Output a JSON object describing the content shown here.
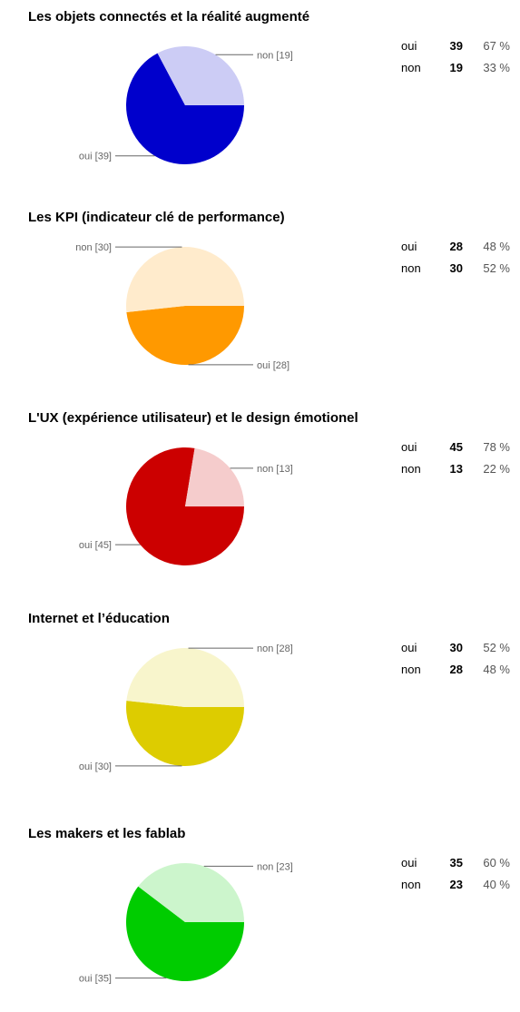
{
  "chart_data": [
    {
      "type": "pie",
      "title": "Les objets connectés et la réalité augmenté",
      "slices": [
        {
          "label": "oui",
          "value": 39,
          "percent": "67 %",
          "slice_label": "oui [39]",
          "color": "#0000cc"
        },
        {
          "label": "non",
          "value": 19,
          "percent": "33 %",
          "slice_label": "non [19]",
          "color": "#ccccf5"
        }
      ]
    },
    {
      "type": "pie",
      "title": "Les KPI (indicateur clé de performance)",
      "slices": [
        {
          "label": "oui",
          "value": 28,
          "percent": "48 %",
          "slice_label": "oui [28]",
          "color": "#ff9900"
        },
        {
          "label": "non",
          "value": 30,
          "percent": "52 %",
          "slice_label": "non [30]",
          "color": "#ffebcc"
        }
      ]
    },
    {
      "type": "pie",
      "title": "L'UX (expérience utilisateur) et le design émotionel",
      "slices": [
        {
          "label": "oui",
          "value": 45,
          "percent": "78 %",
          "slice_label": "oui [45]",
          "color": "#cc0000"
        },
        {
          "label": "non",
          "value": 13,
          "percent": "22 %",
          "slice_label": "non [13]",
          "color": "#f5cccc"
        }
      ]
    },
    {
      "type": "pie",
      "title": "Internet et l’éducation",
      "slices": [
        {
          "label": "oui",
          "value": 30,
          "percent": "52 %",
          "slice_label": "oui [30]",
          "color": "#ddcc00"
        },
        {
          "label": "non",
          "value": 28,
          "percent": "48 %",
          "slice_label": "non [28]",
          "color": "#f8f5cc"
        }
      ]
    },
    {
      "type": "pie",
      "title": "Les makers et les fablab",
      "slices": [
        {
          "label": "oui",
          "value": 35,
          "percent": "60 %",
          "slice_label": "oui [35]",
          "color": "#00cc00"
        },
        {
          "label": "non",
          "value": 23,
          "percent": "40 %",
          "slice_label": "non [23]",
          "color": "#ccf5cc"
        }
      ]
    }
  ]
}
